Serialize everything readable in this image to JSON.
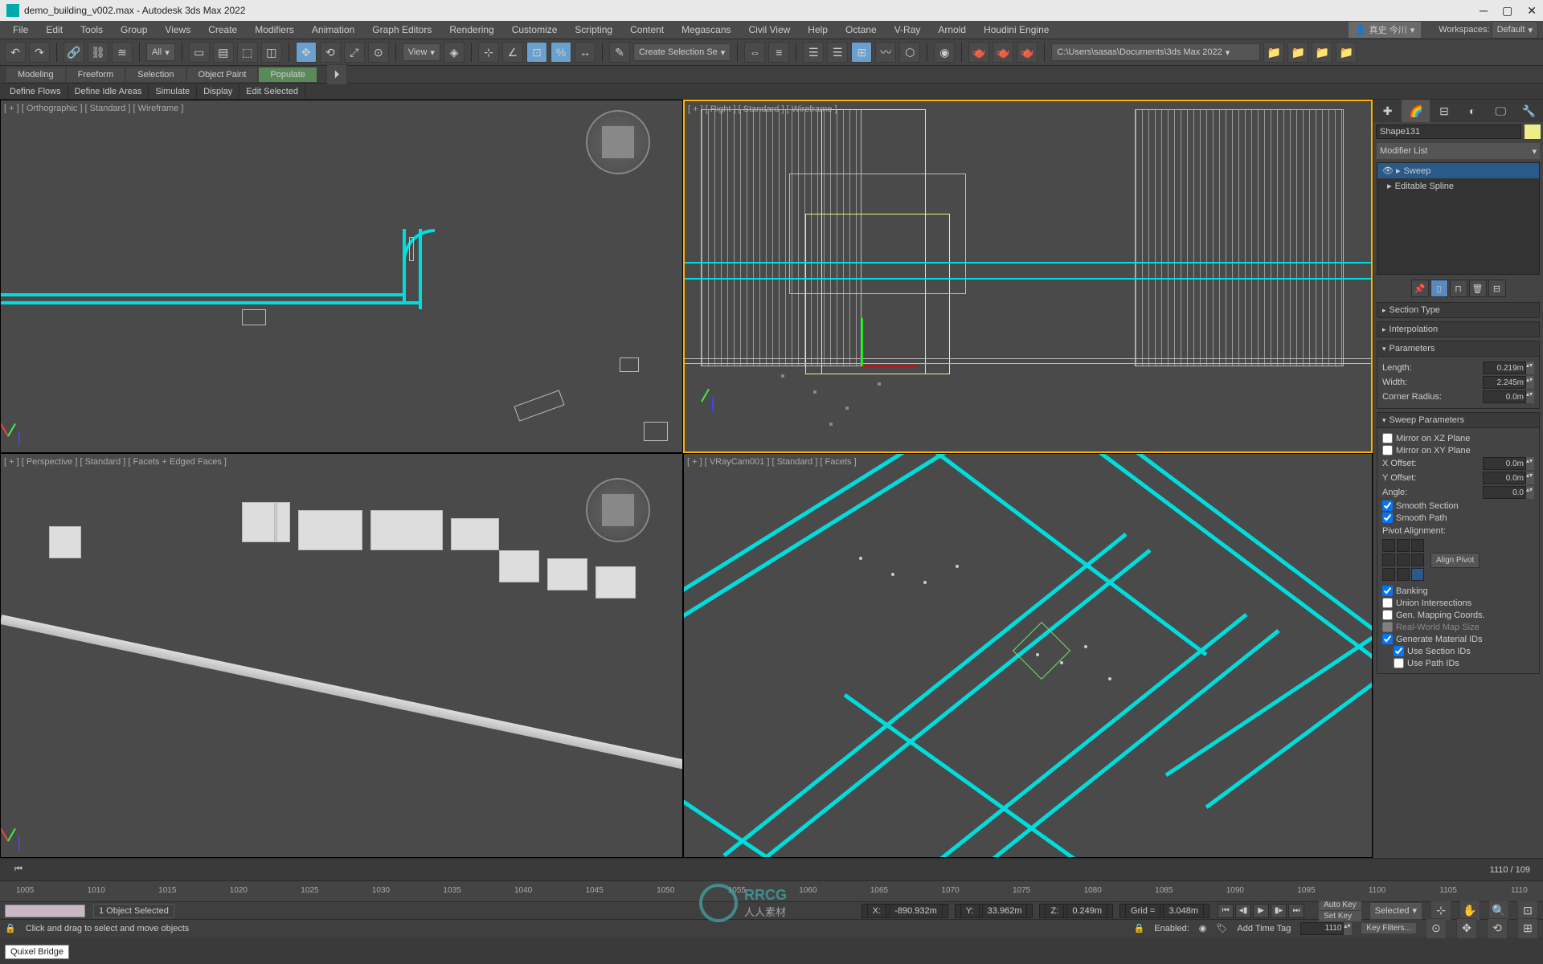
{
  "title": "demo_building_v002.max - Autodesk 3ds Max 2022",
  "user": "真史 今川",
  "workspaces_label": "Workspaces:",
  "workspaces_value": "Default",
  "menu": [
    "File",
    "Edit",
    "Tools",
    "Group",
    "Views",
    "Create",
    "Modifiers",
    "Animation",
    "Graph Editors",
    "Rendering",
    "Customize",
    "Scripting",
    "Content",
    "Megascans",
    "Civil View",
    "Help",
    "Octane",
    "V-Ray",
    "Arnold",
    "Houdini Engine"
  ],
  "toolbar_dd1": "All",
  "toolbar_dd2": "View",
  "toolbar_dd3": "Create Selection Se",
  "toolbar_path": "C:\\Users\\sasas\\Documents\\3ds Max 2022",
  "subtabs": [
    "Modeling",
    "Freeform",
    "Selection",
    "Object Paint",
    "Populate"
  ],
  "flowbar": [
    "Define Flows",
    "Define Idle Areas",
    "Simulate",
    "Display",
    "Edit Selected"
  ],
  "viewport_labels": {
    "tl": "[ + ] [ Orthographic ] [ Standard ] [ Wireframe ]",
    "tr": "[ + ] [ Right ] [ Standard ] [ Wireframe ]",
    "bl": "[ + ] [ Perspective ] [ Standard ] [ Facets + Edged Faces ]",
    "br": "[ + ] [ VRayCam001 ] [ Standard ] [ Facets ]"
  },
  "cmdpanel": {
    "objname": "Shape131",
    "modlist": "Modifier List",
    "modifiers": [
      {
        "name": "Sweep",
        "sel": true
      },
      {
        "name": "Editable Spline",
        "sel": false
      }
    ],
    "rollouts": {
      "section": "Section Type",
      "interp": "Interpolation",
      "params": "Parameters",
      "sweep": "Sweep Parameters"
    },
    "params": {
      "length_lbl": "Length:",
      "length": "0.219m",
      "width_lbl": "Width:",
      "width": "2.245m",
      "corner_lbl": "Corner Radius:",
      "corner": "0.0m"
    },
    "sweep": {
      "mirror_xz": "Mirror on XZ Plane",
      "mirror_xy": "Mirror on XY Plane",
      "xoff_lbl": "X Offset:",
      "xoff": "0.0m",
      "yoff_lbl": "Y Offset:",
      "yoff": "0.0m",
      "angle_lbl": "Angle:",
      "angle": "0.0",
      "smooth_section": "Smooth Section",
      "smooth_path": "Smooth Path",
      "pivot_lbl": "Pivot Alignment:",
      "align_pivot": "Align Pivot",
      "banking": "Banking",
      "union": "Union Intersections",
      "genmap": "Gen. Mapping Coords.",
      "realworld": "Real-World Map Size",
      "genmat": "Generate Material IDs",
      "usesection": "Use Section IDs",
      "usepath": "Use Path IDs"
    }
  },
  "timeline": {
    "frame": "1110 / 109",
    "ticks": [
      1005,
      1010,
      1015,
      1020,
      1025,
      1030,
      1035,
      1040,
      1045,
      1050,
      1055,
      1060,
      1065,
      1070,
      1075,
      1080,
      1085,
      1090,
      1095,
      1100,
      1105,
      1110
    ]
  },
  "status": {
    "objsel": "1 Object Selected",
    "hint": "Click and drag to select and move objects",
    "x_lbl": "X:",
    "x": "-890.932m",
    "y_lbl": "Y:",
    "y": "33.962m",
    "z_lbl": "Z:",
    "z": "0.249m",
    "grid_lbl": "Grid =",
    "grid": "3.048m",
    "autokey": "Auto Key",
    "selected": "Selected",
    "setkey": "Set Key",
    "keyfilters": "Key Filters...",
    "enabled": "Enabled:",
    "addtag": "Add Time Tag",
    "frame": "1110",
    "quixel": "Quixel Bridge"
  },
  "logo": {
    "brand": "RRCG",
    "sub": "人人素材"
  },
  "colors": {
    "cyan": "#00dddd",
    "accent": "#ffb000",
    "bg": "#4a4a4a",
    "dark": "#3a3a3a",
    "sel": "#2a5a8a"
  }
}
